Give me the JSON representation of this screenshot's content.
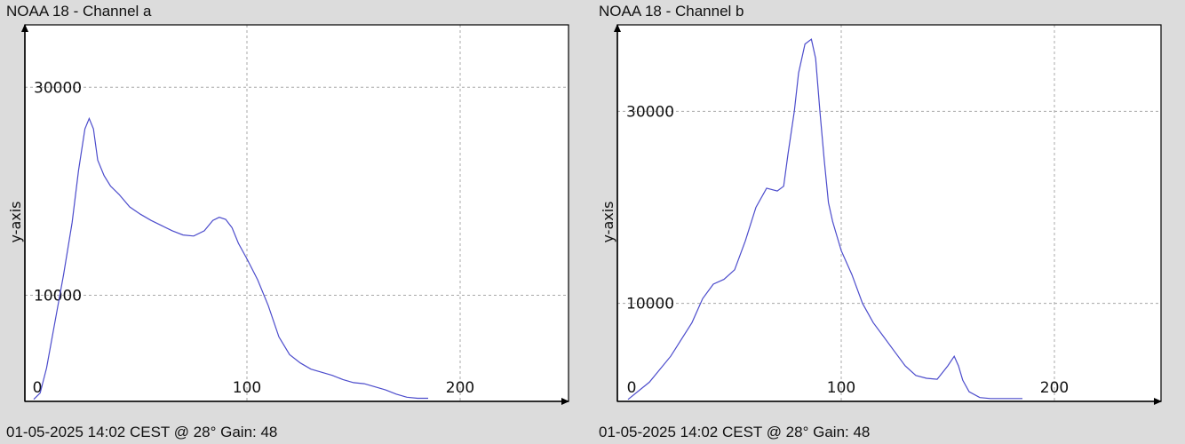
{
  "chart_data": [
    {
      "type": "line",
      "title": "NOAA 18 - Channel a",
      "footer": "01-05-2025 14:02 CEST @ 28° Gain: 48",
      "ylabel": "y-axis",
      "xlabel": "",
      "xlim": [
        0,
        250
      ],
      "ylim": [
        -200,
        36000
      ],
      "x_ticks": [
        0,
        100,
        200
      ],
      "y_ticks": [
        10000,
        30000
      ],
      "grid": true,
      "series": [
        {
          "color": "#4c4ccc",
          "x": [
            0,
            3,
            6,
            10,
            14,
            18,
            21,
            24,
            26,
            28,
            30,
            33,
            36,
            40,
            45,
            50,
            55,
            60,
            65,
            70,
            75,
            80,
            84,
            87,
            90,
            93,
            96,
            100,
            105,
            110,
            115,
            120,
            125,
            130,
            135,
            140,
            145,
            150,
            155,
            160,
            165,
            170,
            175,
            180,
            185
          ],
          "y": [
            0,
            600,
            3000,
            7500,
            12000,
            17000,
            22000,
            26000,
            27000,
            26000,
            23000,
            21500,
            20500,
            19700,
            18500,
            17800,
            17200,
            16700,
            16200,
            15800,
            15700,
            16200,
            17200,
            17500,
            17300,
            16500,
            15000,
            13500,
            11500,
            9000,
            6000,
            4300,
            3500,
            2900,
            2600,
            2300,
            1900,
            1600,
            1500,
            1200,
            900,
            500,
            200,
            100,
            100
          ]
        }
      ]
    },
    {
      "type": "line",
      "title": "NOAA 18 - Channel b",
      "footer": "01-05-2025 14:02 CEST @ 28° Gain: 48",
      "ylabel": "y-axis",
      "xlabel": "",
      "xlim": [
        0,
        250
      ],
      "ylim": [
        -200,
        39000
      ],
      "x_ticks": [
        0,
        100,
        200
      ],
      "y_ticks": [
        10000,
        30000
      ],
      "grid": true,
      "series": [
        {
          "color": "#4c4ccc",
          "x": [
            0,
            10,
            20,
            30,
            35,
            40,
            45,
            50,
            55,
            60,
            65,
            70,
            73,
            75,
            78,
            80,
            83,
            86,
            88,
            90,
            92,
            94,
            96,
            98,
            100,
            105,
            110,
            115,
            120,
            125,
            130,
            135,
            140,
            145,
            150,
            153,
            155,
            157,
            160,
            165,
            170,
            175,
            180,
            185
          ],
          "y": [
            0,
            1800,
            4500,
            8000,
            10500,
            12000,
            12500,
            13500,
            16500,
            20000,
            22000,
            21700,
            22200,
            25500,
            30000,
            34000,
            37000,
            37500,
            35500,
            30000,
            25000,
            20500,
            18500,
            17000,
            15500,
            13000,
            10000,
            8000,
            6500,
            5000,
            3500,
            2500,
            2200,
            2100,
            3500,
            4500,
            3500,
            2000,
            800,
            200,
            100,
            100,
            100,
            100
          ]
        }
      ]
    }
  ]
}
